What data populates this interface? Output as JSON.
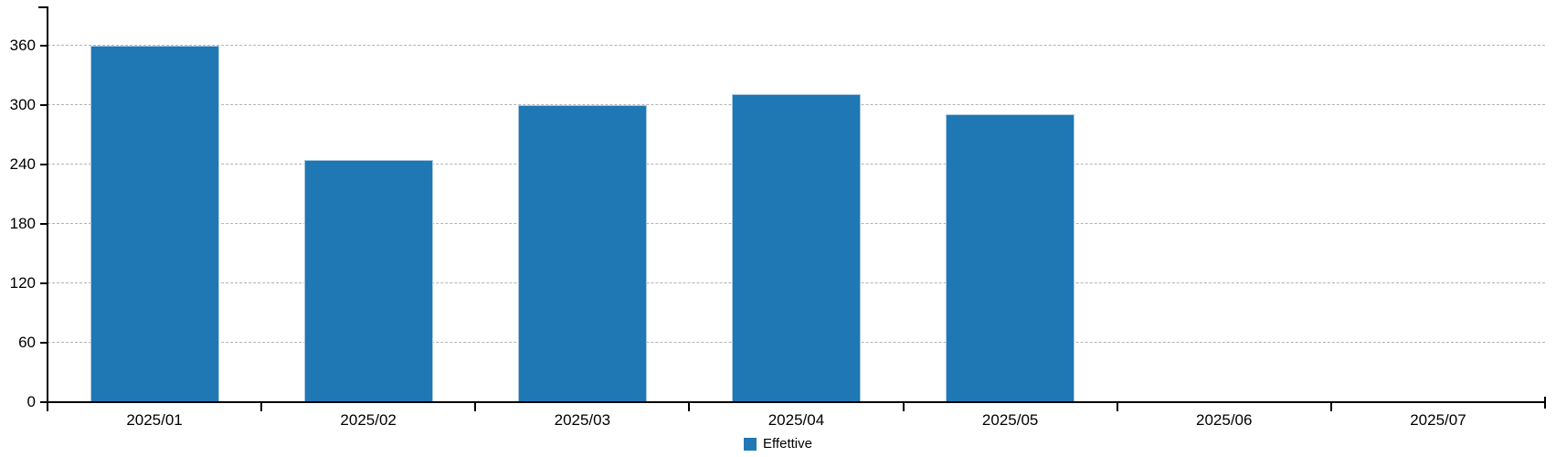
{
  "chart_data": {
    "type": "bar",
    "title": "",
    "xlabel": "",
    "ylabel": "",
    "categories": [
      "2025/01",
      "2025/02",
      "2025/03",
      "2025/04",
      "2025/05",
      "2025/06",
      "2025/07"
    ],
    "series": [
      {
        "name": "Effettive",
        "values": [
          360,
          244,
          300,
          311,
          290,
          null,
          null
        ]
      }
    ],
    "yticks": [
      0,
      60,
      120,
      180,
      240,
      300,
      360
    ],
    "ylim": [
      0,
      360
    ],
    "grid": "horizontal-dashed",
    "legend_position": "bottom-center",
    "colors": {
      "bar_fill": "#1f77b4",
      "bar_border": "#a9c9e2",
      "gridline": "#b3b3b3",
      "axis": "#000000",
      "text": "#000000"
    }
  }
}
